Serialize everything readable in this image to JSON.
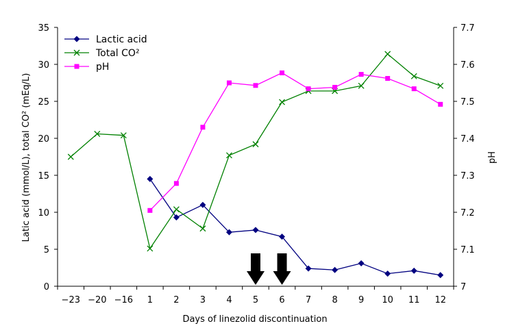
{
  "chart_data": {
    "type": "line",
    "categories": [
      "-23",
      "-20",
      "-16",
      "1",
      "2",
      "3",
      "4",
      "5",
      "6",
      "7",
      "8",
      "9",
      "10",
      "11",
      "12"
    ],
    "xlabel": "Days of linezolid discontinuation",
    "ylabel_left": "Latic acid (mmol/L), total CO² (mEq/L)",
    "ylabel_right": "pH",
    "ylim_left": [
      0,
      35
    ],
    "yticks_left": [
      "0",
      "5",
      "10",
      "15",
      "20",
      "25",
      "30",
      "35"
    ],
    "ylim_right": [
      7.0,
      7.7
    ],
    "yticks_right": [
      "7",
      "7.1",
      "7.2",
      "7.3",
      "7.4",
      "7.5",
      "7.6",
      "7.7"
    ],
    "grid": false,
    "legend_position": "top-left",
    "series": [
      {
        "name": "Lactic acid",
        "axis": "left",
        "color": "#000080",
        "marker": "diamond",
        "values": [
          null,
          null,
          null,
          14.5,
          9.3,
          11.0,
          7.3,
          7.6,
          6.7,
          2.4,
          2.2,
          3.1,
          1.7,
          2.1,
          1.5
        ]
      },
      {
        "name": "Total CO²",
        "axis": "left",
        "color": "#008000",
        "marker": "x",
        "values": [
          17.5,
          20.6,
          20.4,
          5.1,
          10.4,
          7.8,
          17.7,
          19.2,
          24.9,
          26.4,
          26.4,
          27.1,
          31.4,
          28.4,
          27.1
        ]
      },
      {
        "name": "pH",
        "axis": "right",
        "color": "#FF00FF",
        "marker": "square",
        "values": [
          null,
          null,
          null,
          7.205,
          7.278,
          7.43,
          7.55,
          7.543,
          7.577,
          7.534,
          7.538,
          7.573,
          7.562,
          7.534,
          7.492
        ]
      }
    ],
    "annotations": [
      {
        "type": "arrow-down",
        "category": "5"
      },
      {
        "type": "arrow-down",
        "category": "6"
      }
    ]
  }
}
